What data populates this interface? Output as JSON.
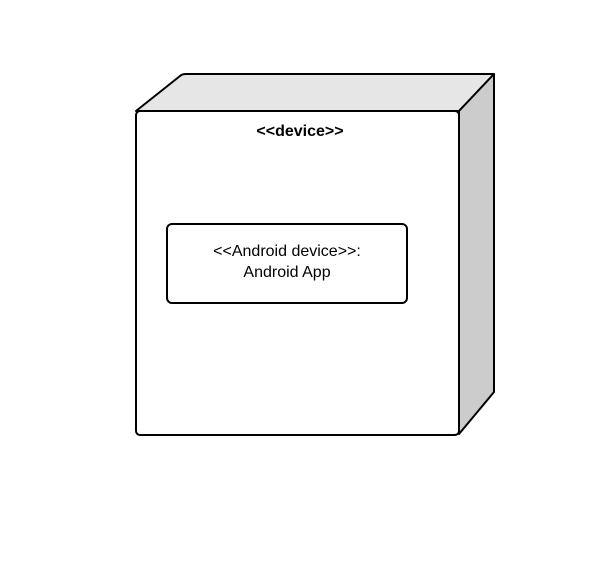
{
  "diagram": {
    "node": {
      "stereotype": "<<device>>"
    },
    "component": {
      "line1": "<<Android device>>:",
      "line2": "Android App"
    }
  },
  "colors": {
    "front_face": "#ffffff",
    "top_face": "#e6e6e6",
    "side_face": "#cccccc",
    "stroke": "#000000",
    "background": "#ffffff"
  }
}
